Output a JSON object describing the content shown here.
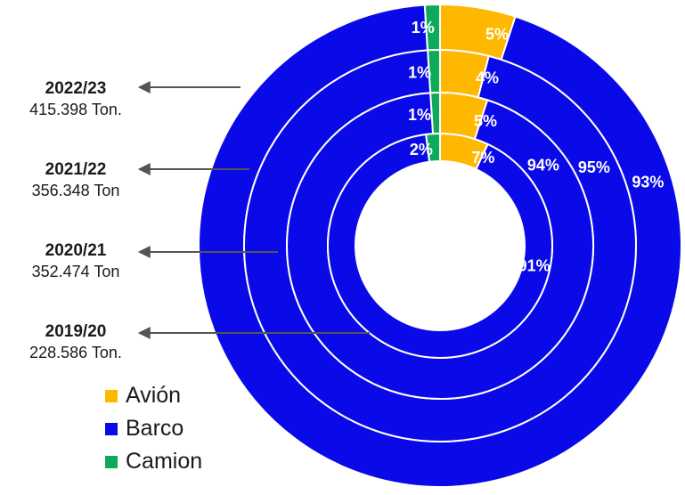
{
  "chart_data": {
    "type": "donut",
    "title": "",
    "legend_position": "bottom-left",
    "series_meta": [
      {
        "key": "avion",
        "name": "Avión",
        "color": "#FFB800"
      },
      {
        "key": "barco",
        "name": "Barco",
        "color": "#0A0AE8"
      },
      {
        "key": "camion",
        "name": "Camion",
        "color": "#0DAA5A"
      }
    ],
    "rings": [
      {
        "season": "2022/23",
        "tonnage": "415.398 Ton.",
        "avion": 5,
        "barco": 93,
        "camion": 1,
        "labels": {
          "avion": "5%",
          "barco": "93%",
          "camion": "1%"
        }
      },
      {
        "season": "2021/22",
        "tonnage": "356.348 Ton",
        "avion": 4,
        "barco": 95,
        "camion": 1,
        "labels": {
          "avion": "4%",
          "barco": "95%",
          "camion": "1%"
        }
      },
      {
        "season": "2020/21",
        "tonnage": "352.474 Ton",
        "avion": 5,
        "barco": 94,
        "camion": 1,
        "labels": {
          "avion": "5%",
          "barco": "94%",
          "camion": "1%"
        }
      },
      {
        "season": "2019/20",
        "tonnage": "228.586 Ton.",
        "avion": 7,
        "barco": 91,
        "camion": 2,
        "labels": {
          "avion": "7%",
          "barco": "91%",
          "camion": "2%"
        }
      }
    ]
  },
  "legend": {
    "items": [
      {
        "label": "Avión",
        "color": "#FFB800"
      },
      {
        "label": "Barco",
        "color": "#0A0AE8"
      },
      {
        "label": "Camion",
        "color": "#0DAA5A"
      }
    ]
  }
}
